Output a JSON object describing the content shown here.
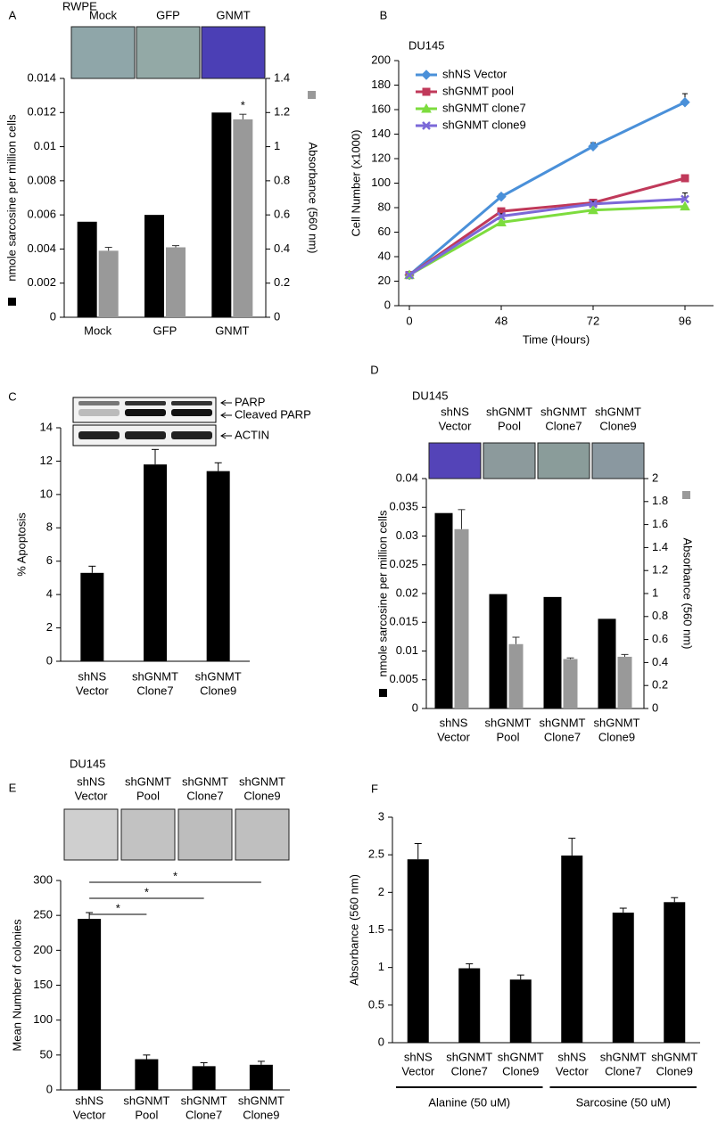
{
  "chart_data": [
    {
      "panel": "A",
      "type": "bar",
      "cell_line": "RWPE",
      "image_labels": [
        "Mock",
        "GFP",
        "GNMT"
      ],
      "categories": [
        "Mock",
        "GFP",
        "GNMT"
      ],
      "y_label": "nmole sarcosine per million cells",
      "y2_label": "Absorbance (560 nm)",
      "series": [
        {
          "color": "#000000",
          "values": [
            0.0056,
            0.006,
            0.012
          ],
          "errors": [
            null,
            null,
            null
          ]
        },
        {
          "color": "#999999",
          "axis": "y2",
          "values": [
            0.39,
            0.41,
            1.16
          ],
          "errors": [
            0.02,
            0.01,
            0.03
          ]
        }
      ],
      "ylim": [
        0,
        0.014
      ],
      "yticks": [
        0,
        0.002,
        0.004,
        0.006,
        0.008,
        0.01,
        0.012,
        0.014
      ],
      "y2lim": [
        0,
        1.4
      ],
      "y2ticks": [
        0,
        0.2,
        0.4,
        0.6,
        0.8,
        1,
        1.2,
        1.4
      ],
      "annotation": "*"
    },
    {
      "panel": "B",
      "type": "line",
      "title": "DU145",
      "categories": [
        "0",
        "48",
        "72",
        "96"
      ],
      "x_label": "Time (Hours)",
      "y_label": "Cell Number (x1000)",
      "ylim": [
        0,
        200
      ],
      "yticks": [
        0,
        20,
        40,
        60,
        80,
        100,
        120,
        140,
        160,
        180,
        200
      ],
      "series": [
        {
          "name": "shNS Vector",
          "color": "#4a90d9",
          "marker": "diamond",
          "values": [
            25,
            89,
            130,
            166
          ],
          "errors": [
            null,
            2,
            3,
            7
          ]
        },
        {
          "name": "shGNMT pool",
          "color": "#c0395a",
          "marker": "square",
          "values": [
            25,
            77,
            84,
            104
          ],
          "errors": [
            null,
            2,
            2,
            2
          ]
        },
        {
          "name": "shGNMT clone7",
          "color": "#7ddc3e",
          "marker": "triangle",
          "values": [
            25,
            68,
            78,
            81
          ],
          "errors": [
            null,
            null,
            null,
            null
          ]
        },
        {
          "name": "shGNMT clone9",
          "color": "#7b68d8",
          "marker": "x",
          "values": [
            25,
            73,
            83,
            87
          ],
          "errors": [
            null,
            2,
            2,
            5
          ]
        }
      ]
    },
    {
      "panel": "C",
      "type": "bar",
      "blot_labels": [
        "PARP",
        "Cleaved PARP",
        "ACTIN"
      ],
      "categories": [
        [
          "shNS",
          "Vector"
        ],
        [
          "shGNMT",
          "Clone7"
        ],
        [
          "shGNMT",
          "Clone9"
        ]
      ],
      "y_label": "% Apoptosis",
      "ylim": [
        0,
        14
      ],
      "yticks": [
        0,
        2,
        4,
        6,
        8,
        10,
        12,
        14
      ],
      "series": [
        {
          "color": "#000000",
          "values": [
            5.3,
            11.8,
            11.4
          ],
          "errors": [
            0.4,
            0.9,
            0.5
          ]
        }
      ]
    },
    {
      "panel": "D",
      "type": "bar",
      "cell_line": "DU145",
      "image_labels": [
        [
          "shNS",
          "Vector"
        ],
        [
          "shGNMT",
          "Pool"
        ],
        [
          "shGNMT",
          "Clone7"
        ],
        [
          "shGNMT",
          "Clone9"
        ]
      ],
      "categories": [
        [
          "shNS",
          "Vector"
        ],
        [
          "shGNMT",
          "Pool"
        ],
        [
          "shGNMT",
          "Clone7"
        ],
        [
          "shGNMT",
          "Clone9"
        ]
      ],
      "y_label": "nmole sarcosine per million cells",
      "y2_label": "Absorbance (560 nm)",
      "series": [
        {
          "color": "#000000",
          "values": [
            0.034,
            0.0199,
            0.0194,
            0.0156
          ],
          "errors": [
            null,
            null,
            null,
            null
          ]
        },
        {
          "color": "#999999",
          "axis": "y2",
          "values": [
            1.56,
            0.56,
            0.43,
            0.45
          ],
          "errors": [
            0.17,
            0.06,
            0.01,
            0.02
          ]
        }
      ],
      "ylim": [
        0,
        0.04
      ],
      "yticks": [
        0,
        0.005,
        0.01,
        0.015,
        0.02,
        0.025,
        0.03,
        0.035,
        0.04
      ],
      "y2lim": [
        0,
        2
      ],
      "y2ticks": [
        0,
        0.2,
        0.4,
        0.6,
        0.8,
        1,
        1.2,
        1.4,
        1.6,
        1.8,
        2
      ]
    },
    {
      "panel": "E",
      "type": "bar",
      "cell_line": "DU145",
      "image_labels": [
        [
          "shNS",
          "Vector"
        ],
        [
          "shGNMT",
          "Pool"
        ],
        [
          "shGNMT",
          "Clone7"
        ],
        [
          "shGNMT",
          "Clone9"
        ]
      ],
      "categories": [
        [
          "shNS",
          "Vector"
        ],
        [
          "shGNMT",
          "Pool"
        ],
        [
          "shGNMT",
          "Clone7"
        ],
        [
          "shGNMT",
          "Clone9"
        ]
      ],
      "y_label": "Mean Number of colonies",
      "ylim": [
        0,
        300
      ],
      "yticks": [
        0,
        50,
        100,
        150,
        200,
        250,
        300
      ],
      "series": [
        {
          "color": "#000000",
          "values": [
            245,
            44,
            34,
            36
          ],
          "errors": [
            9,
            6,
            5,
            5
          ]
        }
      ],
      "significance": [
        "*",
        "*",
        "*"
      ]
    },
    {
      "panel": "F",
      "type": "bar",
      "categories": [
        [
          "shNS",
          "Vector"
        ],
        [
          "shGNMT",
          "Clone7"
        ],
        [
          "shGNMT",
          "Clone9"
        ],
        [
          "shNS",
          "Vector"
        ],
        [
          "shGNMT",
          "Clone7"
        ],
        [
          "shGNMT",
          "Clone9"
        ]
      ],
      "groups": [
        "Alanine (50 uM)",
        "Sarcosine (50 uM)"
      ],
      "y_label": "Absorbance (560 nm)",
      "ylim": [
        0,
        3
      ],
      "yticks": [
        0,
        0.5,
        1,
        1.5,
        2,
        2.5,
        3
      ],
      "series": [
        {
          "color": "#000000",
          "values": [
            2.44,
            0.99,
            0.84,
            2.49,
            1.73,
            1.87
          ],
          "errors": [
            0.21,
            0.06,
            0.06,
            0.23,
            0.06,
            0.06
          ]
        }
      ]
    }
  ]
}
